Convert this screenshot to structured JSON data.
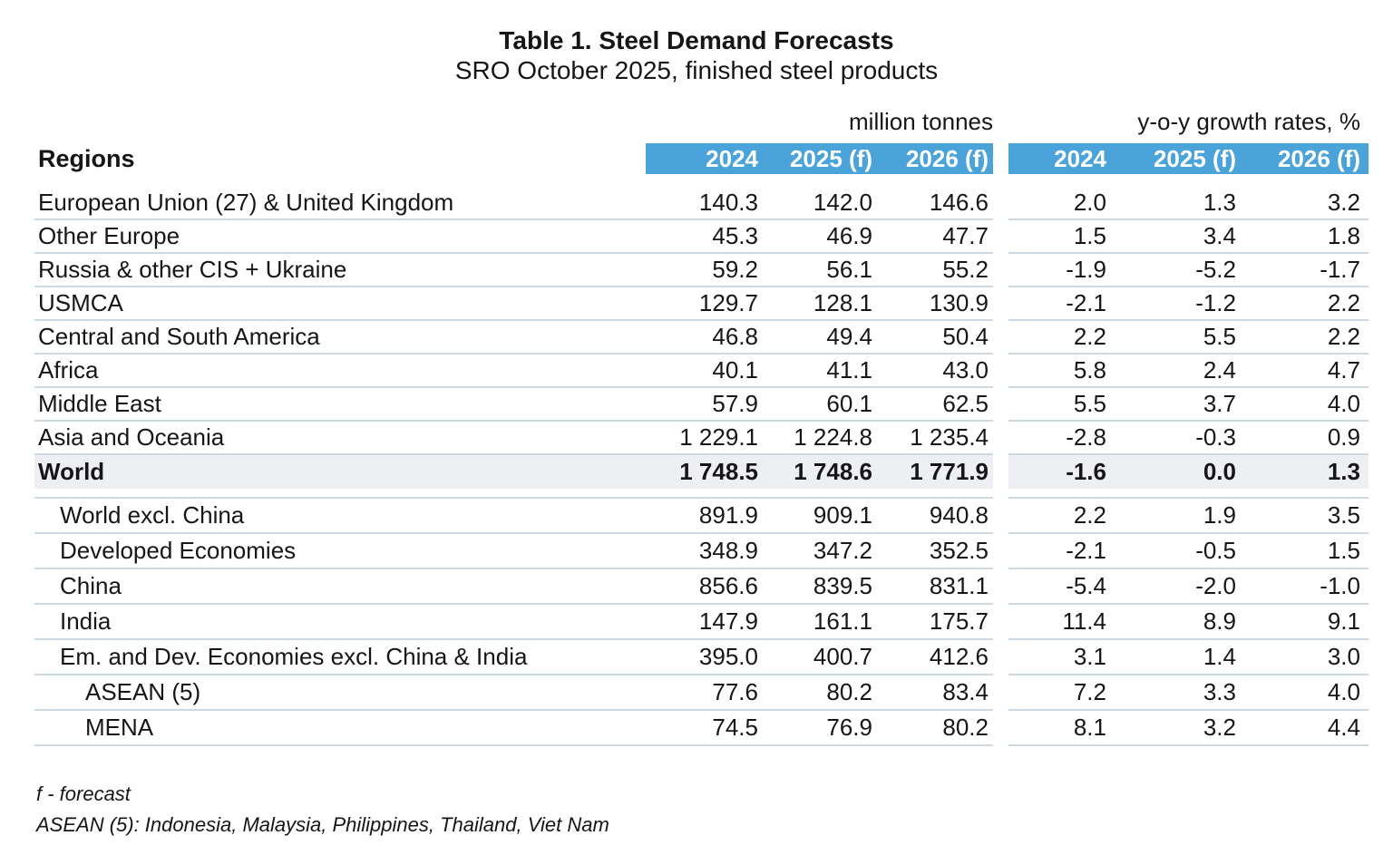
{
  "title": "Table 1. Steel Demand Forecasts",
  "subtitle": "SRO October 2025, finished steel products",
  "header": {
    "regions_label": "Regions",
    "tonnes_group_label": "million tonnes",
    "growth_group_label": "y-o-y growth rates, %",
    "years": [
      "2024",
      "2025 (f)",
      "2026 (f)",
      "2024",
      "2025 (f)",
      "2026 (f)"
    ]
  },
  "chart_data": {
    "type": "table",
    "title": "Table 1. Steel Demand Forecasts",
    "subtitle": "SRO October 2025, finished steel products",
    "column_groups": [
      {
        "label": "million tonnes",
        "columns": [
          "2024",
          "2025 (f)",
          "2026 (f)"
        ]
      },
      {
        "label": "y-o-y growth rates, %",
        "columns": [
          "2024",
          "2025 (f)",
          "2026 (f)"
        ]
      }
    ],
    "rows": [
      {
        "region": "European Union (27) & United Kingdom",
        "indent": 0,
        "bold": false,
        "highlight": false,
        "values": [
          "140.3",
          "142.0",
          "146.6",
          "2.0",
          "1.3",
          "3.2"
        ]
      },
      {
        "region": "Other Europe",
        "indent": 0,
        "bold": false,
        "highlight": false,
        "values": [
          "45.3",
          "46.9",
          "47.7",
          "1.5",
          "3.4",
          "1.8"
        ]
      },
      {
        "region": "Russia & other CIS + Ukraine",
        "indent": 0,
        "bold": false,
        "highlight": false,
        "values": [
          "59.2",
          "56.1",
          "55.2",
          "-1.9",
          "-5.2",
          "-1.7"
        ]
      },
      {
        "region": "USMCA",
        "indent": 0,
        "bold": false,
        "highlight": false,
        "values": [
          "129.7",
          "128.1",
          "130.9",
          "-2.1",
          "-1.2",
          "2.2"
        ]
      },
      {
        "region": "Central and South America",
        "indent": 0,
        "bold": false,
        "highlight": false,
        "values": [
          "46.8",
          "49.4",
          "50.4",
          "2.2",
          "5.5",
          "2.2"
        ]
      },
      {
        "region": "Africa",
        "indent": 0,
        "bold": false,
        "highlight": false,
        "values": [
          "40.1",
          "41.1",
          "43.0",
          "5.8",
          "2.4",
          "4.7"
        ]
      },
      {
        "region": "Middle East",
        "indent": 0,
        "bold": false,
        "highlight": false,
        "values": [
          "57.9",
          "60.1",
          "62.5",
          "5.5",
          "3.7",
          "4.0"
        ]
      },
      {
        "region": "Asia and Oceania",
        "indent": 0,
        "bold": false,
        "highlight": false,
        "values": [
          "1 229.1",
          "1 224.8",
          "1 235.4",
          "-2.8",
          "-0.3",
          "0.9"
        ]
      },
      {
        "region": "World",
        "indent": 0,
        "bold": true,
        "highlight": true,
        "values": [
          "1 748.5",
          "1 748.6",
          "1 771.9",
          "-1.6",
          "0.0",
          "1.3"
        ]
      },
      {
        "region": "World excl. China",
        "indent": 1,
        "bold": false,
        "highlight": false,
        "values": [
          "891.9",
          "909.1",
          "940.8",
          "2.2",
          "1.9",
          "3.5"
        ]
      },
      {
        "region": "Developed Economies",
        "indent": 1,
        "bold": false,
        "highlight": false,
        "values": [
          "348.9",
          "347.2",
          "352.5",
          "-2.1",
          "-0.5",
          "1.5"
        ]
      },
      {
        "region": "China",
        "indent": 1,
        "bold": false,
        "highlight": false,
        "values": [
          "856.6",
          "839.5",
          "831.1",
          "-5.4",
          "-2.0",
          "-1.0"
        ]
      },
      {
        "region": "India",
        "indent": 1,
        "bold": false,
        "highlight": false,
        "values": [
          "147.9",
          "161.1",
          "175.7",
          "11.4",
          "8.9",
          "9.1"
        ]
      },
      {
        "region": "Em. and Dev. Economies excl. China & India",
        "indent": 1,
        "bold": false,
        "highlight": false,
        "values": [
          "395.0",
          "400.7",
          "412.6",
          "3.1",
          "1.4",
          "3.0"
        ]
      },
      {
        "region": "ASEAN (5)",
        "indent": 2,
        "bold": false,
        "highlight": false,
        "values": [
          "77.6",
          "80.2",
          "83.4",
          "7.2",
          "3.3",
          "4.0"
        ]
      },
      {
        "region": "MENA",
        "indent": 2,
        "bold": false,
        "highlight": false,
        "values": [
          "74.5",
          "76.9",
          "80.2",
          "8.1",
          "3.2",
          "4.4"
        ]
      }
    ]
  },
  "footnotes": [
    "f - forecast",
    "ASEAN (5): Indonesia, Malaysia, Philippines, Thailand, Viet Nam"
  ],
  "colors": {
    "header_blue": "#4aa4da",
    "highlight_row": "#edeff3",
    "separator_line": "#cdd9e2"
  }
}
